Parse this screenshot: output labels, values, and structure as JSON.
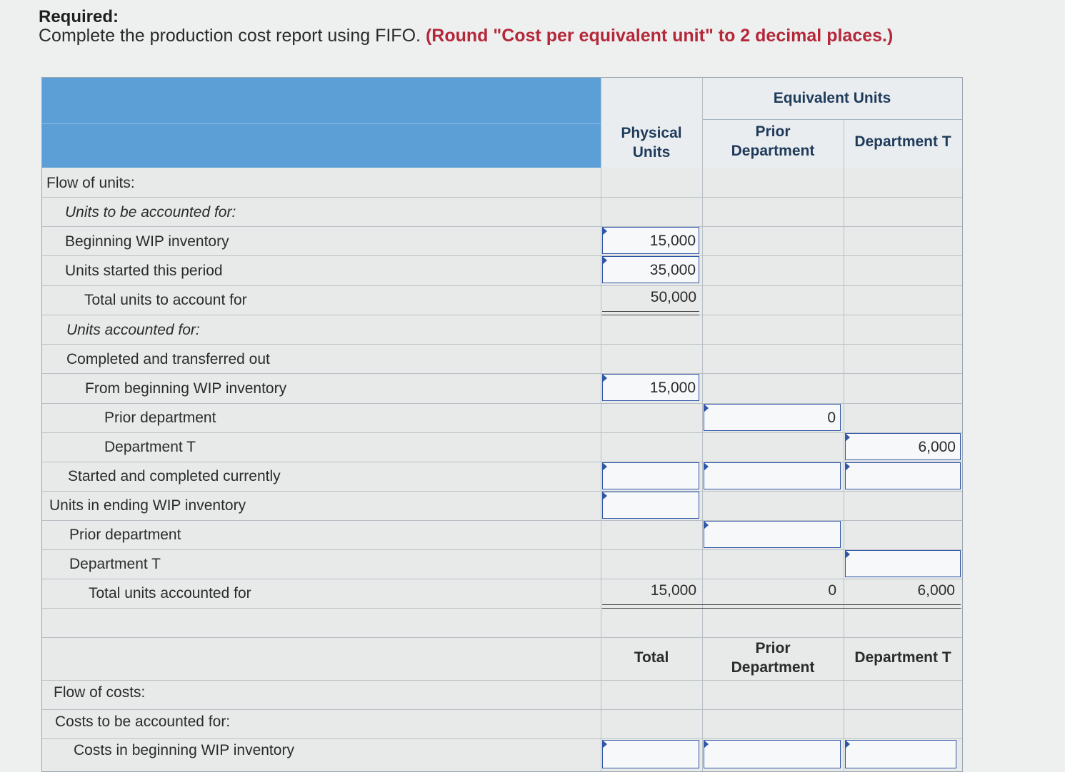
{
  "required": {
    "title": "Required:",
    "instruction": "Complete the production cost report using FIFO.",
    "instruction_note": "(Round \"Cost per equivalent unit\" to 2 decimal places.)"
  },
  "headers": {
    "equivalent_units": "Equivalent Units",
    "physical_units": [
      "Physical",
      "Units"
    ],
    "prior_department": [
      "Prior",
      "Department"
    ],
    "department_t": "Department T"
  },
  "flow_units": {
    "flow_label": "Flow of units:",
    "to_be_accounted": "Units to be accounted for:",
    "beginning_wip": {
      "label": "Beginning WIP inventory",
      "physical": "15,000"
    },
    "started": {
      "label": "Units started this period",
      "physical": "35,000"
    },
    "total_to_account": {
      "label": "Total units to account for",
      "physical": "50,000"
    },
    "accounted_for": "Units accounted for:",
    "completed_transferred": "Completed and transferred out",
    "from_beginning": {
      "label": "From beginning WIP inventory",
      "physical": "15,000"
    },
    "prior_dept_row": {
      "label": "Prior department",
      "prior": "0"
    },
    "dept_t_row": {
      "label": "Department T",
      "dept_t": "6,000"
    },
    "started_completed": {
      "label": "Started and completed currently",
      "physical": "",
      "prior": "",
      "dept_t": ""
    },
    "ending_wip": {
      "label": "Units in ending WIP inventory",
      "physical": ""
    },
    "ending_prior": {
      "label": "Prior department",
      "prior": ""
    },
    "ending_dept_t": {
      "label": "Department T",
      "dept_t": ""
    },
    "total_accounted": {
      "label": "Total units accounted for",
      "physical": "15,000",
      "prior": "0",
      "dept_t": "6,000"
    }
  },
  "cost_headers": {
    "total": "Total",
    "prior_department": [
      "Prior",
      "Department"
    ],
    "department_t": "Department T"
  },
  "flow_costs": {
    "flow_label": "Flow of costs:",
    "to_be_accounted": "Costs to be accounted for:",
    "beginning_wip_costs": {
      "label": "Costs in beginning WIP inventory",
      "total": "",
      "prior": "",
      "dept_t": ""
    }
  }
}
